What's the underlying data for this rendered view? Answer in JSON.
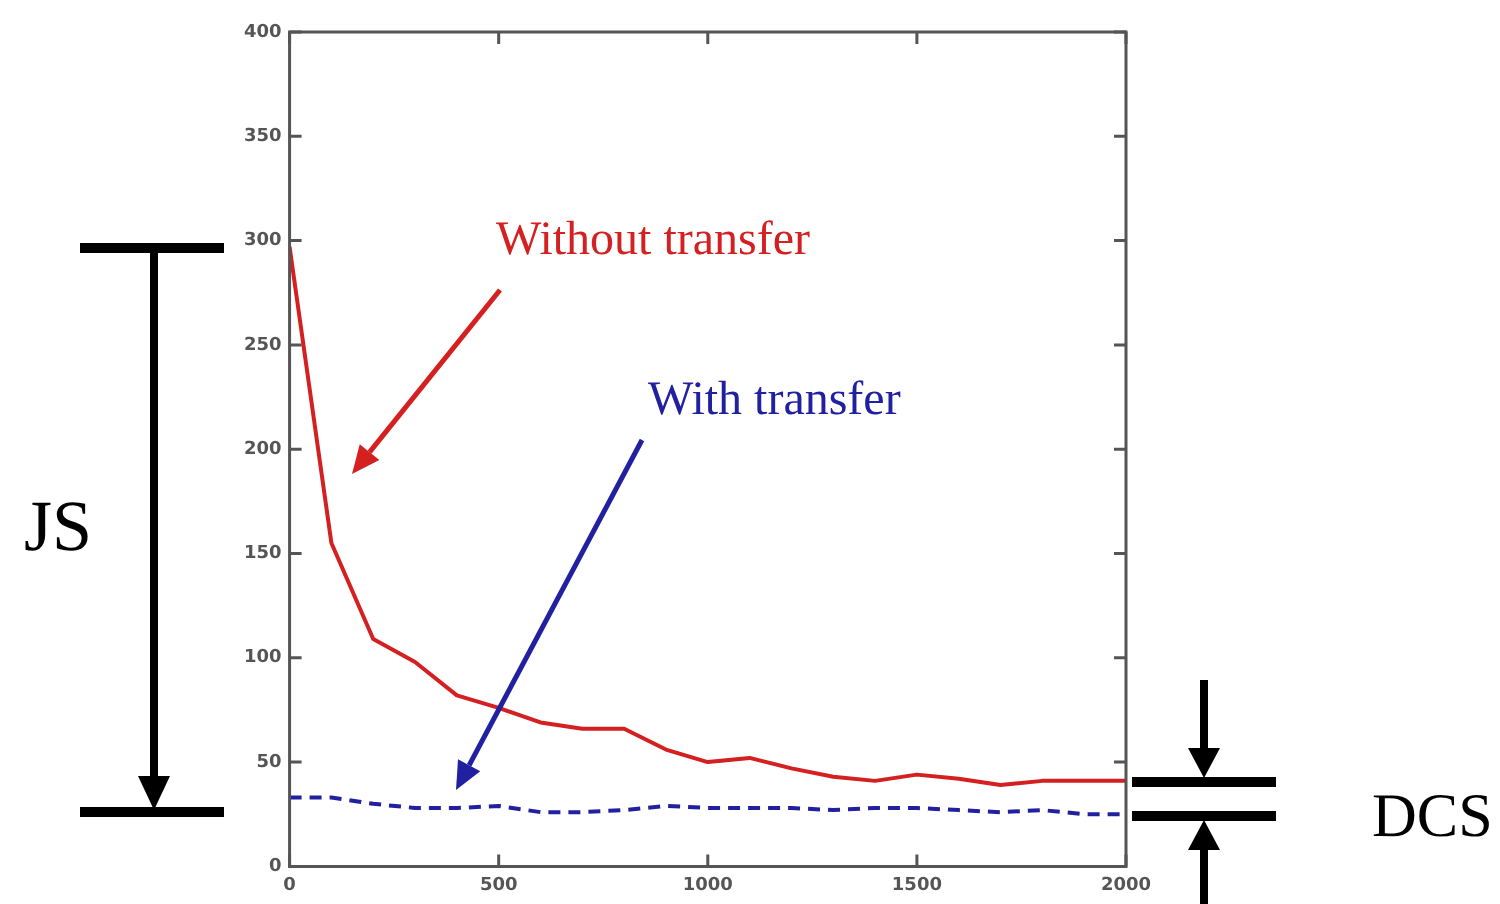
{
  "chart_data": {
    "type": "line",
    "x": [
      0,
      100,
      200,
      300,
      400,
      500,
      600,
      700,
      800,
      900,
      1000,
      1100,
      1200,
      1300,
      1400,
      1500,
      1600,
      1700,
      1800,
      1900,
      2000
    ],
    "series": [
      {
        "name": "Without transfer",
        "color": "#d42020",
        "line_style": "solid",
        "values": [
          297,
          155,
          109,
          98,
          82,
          76,
          69,
          66,
          66,
          56,
          50,
          52,
          47,
          43,
          41,
          44,
          42,
          39,
          41,
          41,
          41
        ]
      },
      {
        "name": "With transfer",
        "color": "#2020a0",
        "line_style": "dashed",
        "values": [
          33,
          33,
          30,
          28,
          28,
          29,
          26,
          26,
          27,
          29,
          28,
          28,
          28,
          27,
          28,
          28,
          27,
          26,
          27,
          25,
          25
        ]
      }
    ],
    "xlim": [
      0,
      2000
    ],
    "xticks": [
      0,
      500,
      1000,
      1500,
      2000
    ],
    "ylim": [
      0,
      400
    ],
    "yticks": [
      0,
      50,
      100,
      150,
      200,
      250,
      300,
      350,
      400
    ],
    "grid": false,
    "legend": false,
    "marker": "none",
    "annotations": [
      "JS",
      "DCS"
    ]
  }
}
